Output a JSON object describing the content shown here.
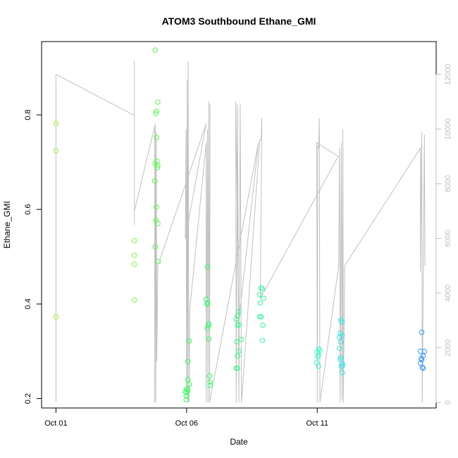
{
  "chart_data": {
    "type": "scatter",
    "title": "ATOM3 Southbound Ethane_GMI",
    "xlabel": "Date",
    "ylabel": "Ethane_GMI",
    "y2label": "",
    "x_tick_labels": [
      "Oct 01",
      "Oct 06",
      "Oct 11"
    ],
    "x_tick_values": [
      0,
      5,
      10
    ],
    "y_ticks": [
      0.2,
      0.4,
      0.6,
      0.8
    ],
    "y2_ticks": [
      0,
      2000,
      4000,
      6000,
      8000,
      10000,
      12000
    ],
    "xlim": [
      -0.55,
      14.55
    ],
    "ylim": [
      0.18,
      0.955
    ],
    "y2lim": [
      -200,
      13200
    ],
    "colors": {
      "points_early": "#99ff33",
      "points_mid": "#33ff66",
      "points_late": "#33e6e6",
      "points_last": "#3399ff",
      "altitude_line": "#c0c0c0"
    },
    "series": [
      {
        "type": "scatter",
        "points": [
          [
            0.0,
            0.782,
            "#99ff33"
          ],
          [
            0.0,
            0.724,
            "#99ff33"
          ],
          [
            0.0,
            0.373,
            "#99ff33"
          ],
          [
            3.0,
            0.534,
            "#80ff40"
          ],
          [
            3.0,
            0.503,
            "#80ff40"
          ],
          [
            3.0,
            0.484,
            "#80ff40"
          ],
          [
            3.0,
            0.408,
            "#80ff40"
          ],
          [
            3.8,
            0.937,
            "#55ff44"
          ],
          [
            3.85,
            0.808,
            "#55ff44"
          ],
          [
            3.82,
            0.803,
            "#55ff44"
          ],
          [
            3.9,
            0.827,
            "#55ff44"
          ],
          [
            3.85,
            0.752,
            "#55ff44"
          ],
          [
            3.8,
            0.697,
            "#55ff44"
          ],
          [
            3.87,
            0.702,
            "#55ff44"
          ],
          [
            3.9,
            0.693,
            "#55ff44"
          ],
          [
            3.88,
            0.688,
            "#55ff44"
          ],
          [
            3.78,
            0.66,
            "#55ff44"
          ],
          [
            3.84,
            0.605,
            "#55ff44"
          ],
          [
            3.83,
            0.577,
            "#55ff44"
          ],
          [
            3.9,
            0.57,
            "#55ff44"
          ],
          [
            3.8,
            0.521,
            "#55ff44"
          ],
          [
            3.92,
            0.49,
            "#55ff44"
          ],
          [
            5.0,
            0.22,
            "#33ff55"
          ],
          [
            4.95,
            0.215,
            "#33ff55"
          ],
          [
            5.0,
            0.212,
            "#33ff55"
          ],
          [
            5.05,
            0.218,
            "#33ff55"
          ],
          [
            5.0,
            0.205,
            "#33ff55"
          ],
          [
            4.98,
            0.198,
            "#33ff55"
          ],
          [
            5.05,
            0.24,
            "#33ff55"
          ],
          [
            5.1,
            0.23,
            "#33ff55"
          ],
          [
            5.05,
            0.278,
            "#33ff55"
          ],
          [
            5.1,
            0.322,
            "#33ff55"
          ],
          [
            5.8,
            0.478,
            "#33ff66"
          ],
          [
            5.75,
            0.41,
            "#33ff66"
          ],
          [
            5.8,
            0.402,
            "#33ff66"
          ],
          [
            5.78,
            0.4,
            "#33ff66"
          ],
          [
            5.85,
            0.358,
            "#33ff66"
          ],
          [
            5.83,
            0.354,
            "#33ff66"
          ],
          [
            5.8,
            0.348,
            "#33ff66"
          ],
          [
            5.85,
            0.326,
            "#33ff66"
          ],
          [
            5.88,
            0.248,
            "#33ff66"
          ],
          [
            5.9,
            0.235,
            "#33ff66"
          ],
          [
            5.9,
            0.228,
            "#33ff66"
          ],
          [
            7.0,
            0.384,
            "#33ff80"
          ],
          [
            6.95,
            0.375,
            "#33ff80"
          ],
          [
            6.9,
            0.368,
            "#33ff80"
          ],
          [
            7.0,
            0.356,
            "#33ff80"
          ],
          [
            6.95,
            0.355,
            "#33ff80"
          ],
          [
            6.92,
            0.32,
            "#33ff80"
          ],
          [
            7.1,
            0.325,
            "#33ff80"
          ],
          [
            7.0,
            0.3,
            "#33ff80"
          ],
          [
            6.95,
            0.29,
            "#33ff80"
          ],
          [
            6.9,
            0.264,
            "#33ff80"
          ],
          [
            6.95,
            0.264,
            "#33ff80"
          ],
          [
            7.85,
            0.434,
            "#33ff99"
          ],
          [
            7.9,
            0.432,
            "#33ff99"
          ],
          [
            7.8,
            0.42,
            "#33ff99"
          ],
          [
            7.95,
            0.412,
            "#33ff99"
          ],
          [
            7.82,
            0.402,
            "#33ff99"
          ],
          [
            7.8,
            0.373,
            "#33ff99"
          ],
          [
            7.85,
            0.373,
            "#33ff99"
          ],
          [
            7.92,
            0.355,
            "#33ff99"
          ],
          [
            7.9,
            0.323,
            "#33ff99"
          ],
          [
            10.05,
            0.305,
            "#33ffcc"
          ],
          [
            10.1,
            0.302,
            "#33ffcc"
          ],
          [
            10.0,
            0.298,
            "#33ffcc"
          ],
          [
            10.05,
            0.292,
            "#33ffcc"
          ],
          [
            10.02,
            0.288,
            "#33ffcc"
          ],
          [
            9.98,
            0.276,
            "#33ffcc"
          ],
          [
            10.05,
            0.268,
            "#33ffcc"
          ],
          [
            10.9,
            0.366,
            "#33e6e6"
          ],
          [
            10.95,
            0.362,
            "#33e6e6"
          ],
          [
            10.88,
            0.338,
            "#33e6e6"
          ],
          [
            10.85,
            0.33,
            "#33e6e6"
          ],
          [
            10.95,
            0.333,
            "#33e6e6"
          ],
          [
            10.9,
            0.32,
            "#33e6e6"
          ],
          [
            10.85,
            0.306,
            "#33e6e6"
          ],
          [
            10.9,
            0.287,
            "#33e6e6"
          ],
          [
            10.88,
            0.283,
            "#33e6e6"
          ],
          [
            10.95,
            0.274,
            "#33e6e6"
          ],
          [
            10.92,
            0.268,
            "#33e6e6"
          ],
          [
            10.98,
            0.27,
            "#33e6e6"
          ],
          [
            10.95,
            0.255,
            "#33e6e6"
          ],
          [
            14.0,
            0.34,
            "#3399ff"
          ],
          [
            13.95,
            0.3,
            "#3399ff"
          ],
          [
            14.1,
            0.3,
            "#3399ff"
          ],
          [
            14.05,
            0.29,
            "#3399ff"
          ],
          [
            13.98,
            0.285,
            "#3399ff"
          ],
          [
            14.0,
            0.282,
            "#3399ff"
          ],
          [
            13.95,
            0.275,
            "#3399ff"
          ],
          [
            14.02,
            0.266,
            "#3399ff"
          ],
          [
            14.05,
            0.264,
            "#3399ff"
          ]
        ]
      },
      {
        "type": "line",
        "axis": "right",
        "points": [
          [
            0.0,
            12.0
          ],
          [
            0.0,
            12.0
          ],
          [
            0.0,
            12000
          ],
          [
            3.0,
            10500
          ],
          [
            3.0,
            12500
          ],
          [
            3.0,
            6500
          ],
          [
            3.0,
            7000
          ],
          [
            3.78,
            10100
          ],
          [
            3.78,
            0
          ],
          [
            3.8,
            10200
          ],
          [
            3.82,
            0
          ],
          [
            3.84,
            9900
          ],
          [
            3.86,
            1500
          ],
          [
            3.9,
            5000
          ],
          [
            5.75,
            10200
          ],
          [
            4.95,
            6000
          ],
          [
            4.98,
            10000
          ],
          [
            5.0,
            300
          ],
          [
            5.02,
            11800
          ],
          [
            5.04,
            0
          ],
          [
            5.06,
            12500
          ],
          [
            5.08,
            3000
          ],
          [
            5.1,
            0
          ],
          [
            5.12,
            3400
          ],
          [
            5.75,
            9500
          ],
          [
            5.75,
            0
          ],
          [
            5.8,
            10000
          ],
          [
            5.82,
            0
          ],
          [
            5.85,
            11000
          ],
          [
            5.88,
            0
          ],
          [
            5.9,
            10900
          ],
          [
            5.88,
            0
          ],
          [
            7.75,
            9500
          ],
          [
            7.0,
            3000
          ],
          [
            6.88,
            11000
          ],
          [
            6.9,
            0
          ],
          [
            6.95,
            10900
          ],
          [
            7.0,
            0
          ],
          [
            7.05,
            10900
          ],
          [
            7.1,
            0
          ],
          [
            7.8,
            9600
          ],
          [
            7.85,
            9600
          ],
          [
            7.88,
            10400
          ],
          [
            7.82,
            3800
          ],
          [
            10.8,
            9000
          ],
          [
            9.98,
            9500
          ],
          [
            10.0,
            0
          ],
          [
            10.02,
            9400
          ],
          [
            10.05,
            9300
          ],
          [
            10.08,
            10400
          ],
          [
            10.1,
            0
          ],
          [
            10.82,
            5000
          ],
          [
            10.85,
            9300
          ],
          [
            10.88,
            0
          ],
          [
            10.92,
            9500
          ],
          [
            10.95,
            100
          ],
          [
            10.98,
            10000
          ],
          [
            11.0,
            0
          ],
          [
            11.05,
            5000
          ],
          [
            13.95,
            9300
          ],
          [
            13.95,
            4800
          ],
          [
            14.0,
            9900
          ],
          [
            14.02,
            0
          ],
          [
            14.1,
            9800
          ],
          [
            14.12,
            5000
          ]
        ]
      }
    ]
  }
}
